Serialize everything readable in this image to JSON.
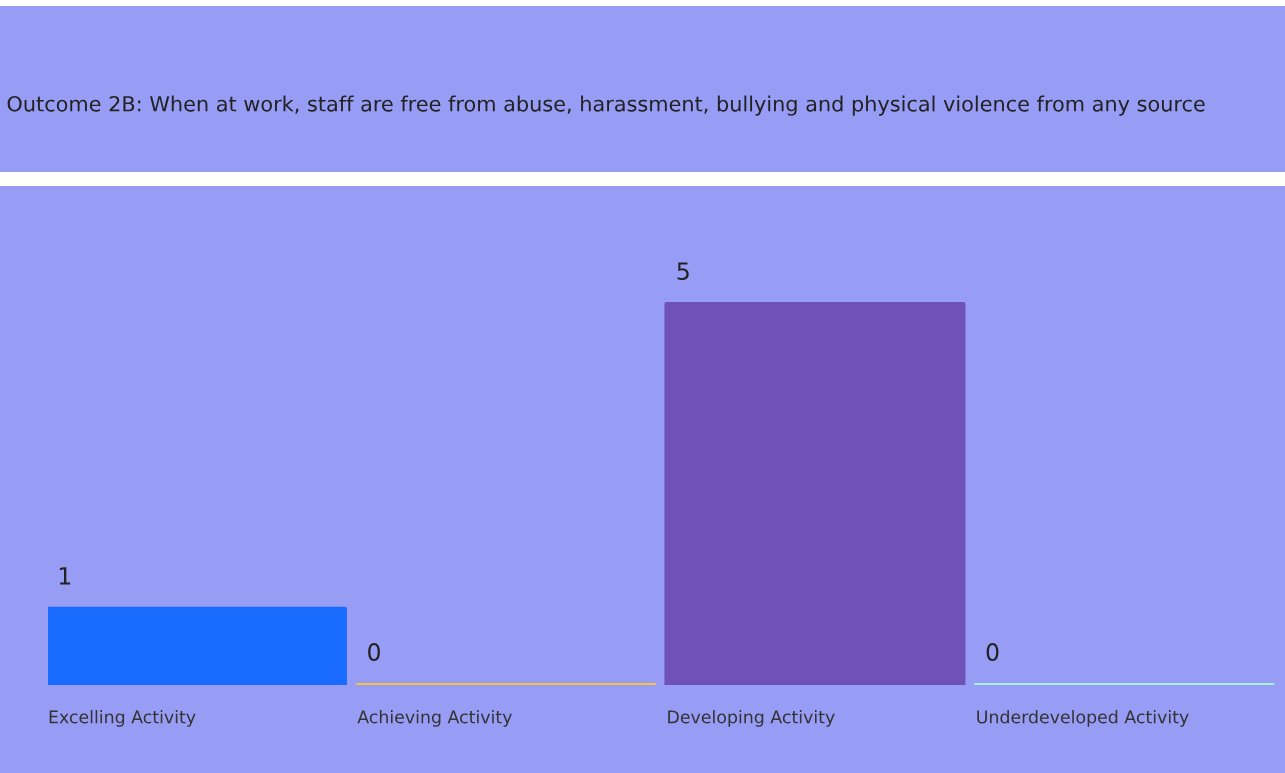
{
  "chart_data": {
    "type": "bar",
    "title": "Outcome 2B: When at work, staff are free from abuse, harassment, bullying and physical violence from any source",
    "categories": [
      "Excelling Activity",
      "Achieving Activity",
      "Developing Activity",
      "Underdeveloped Activity"
    ],
    "values": [
      1,
      0,
      5,
      0
    ],
    "colors": [
      "#1a6bff",
      "#f7c244",
      "#6e52b8",
      "#a6f0d6"
    ],
    "data_labels": true,
    "grid": false,
    "legend": false
  }
}
